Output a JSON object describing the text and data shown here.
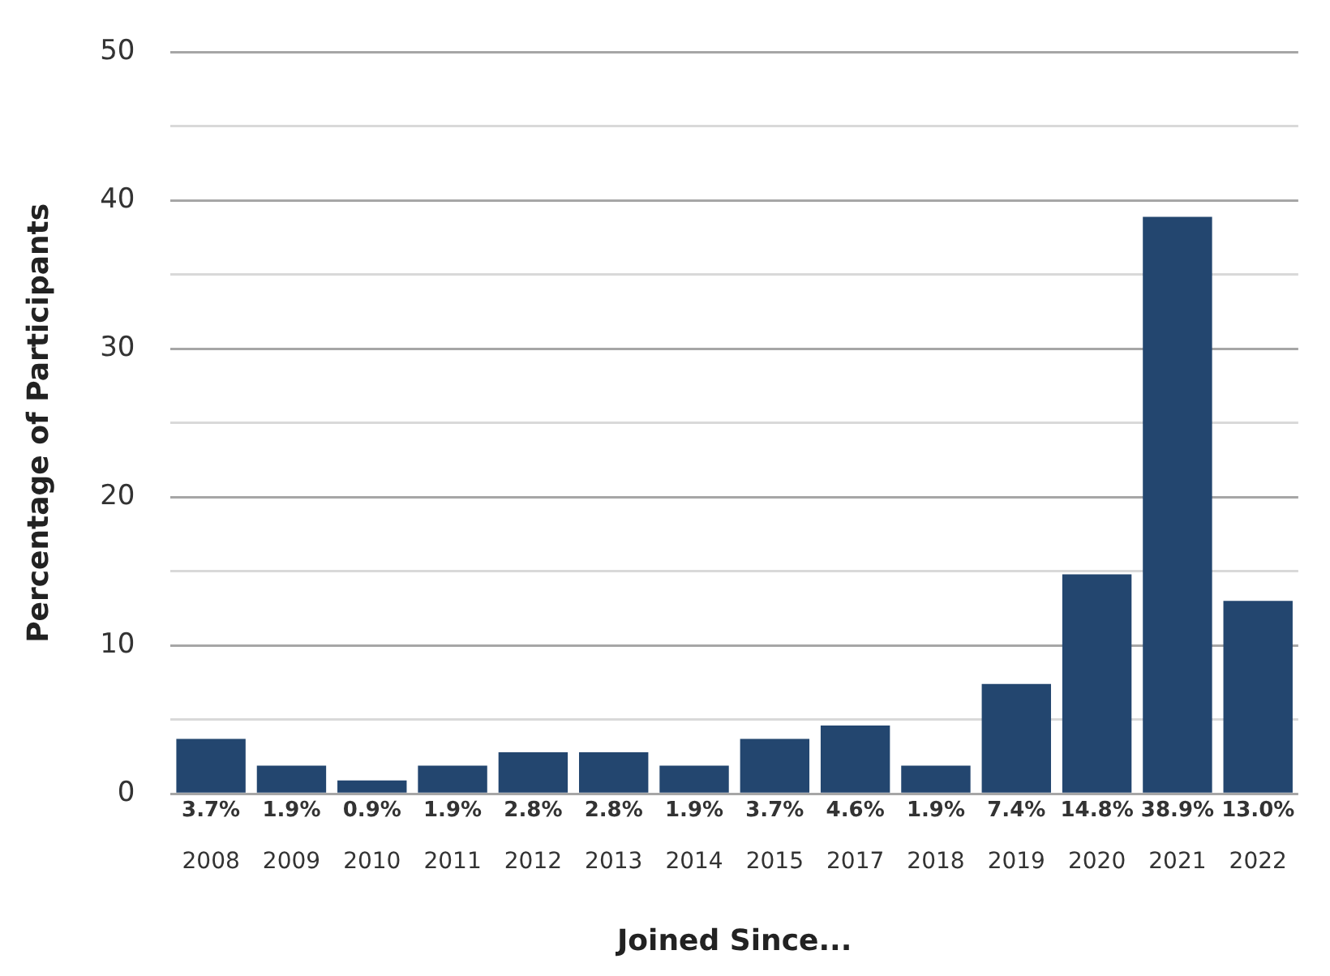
{
  "chart_data": {
    "type": "bar",
    "xlabel": "Joined Since...",
    "ylabel": "Percentage of Participants",
    "categories": [
      "2008",
      "2009",
      "2010",
      "2011",
      "2012",
      "2013",
      "2014",
      "2015",
      "2017",
      "2018",
      "2019",
      "2020",
      "2021",
      "2022"
    ],
    "values": [
      3.7,
      1.9,
      0.9,
      1.9,
      2.8,
      2.8,
      1.9,
      3.7,
      4.6,
      1.9,
      7.4,
      14.8,
      38.9,
      13.0
    ],
    "value_labels": [
      "3.7%",
      "1.9%",
      "0.9%",
      "1.9%",
      "2.8%",
      "2.8%",
      "1.9%",
      "3.7%",
      "4.6%",
      "1.9%",
      "7.4%",
      "14.8%",
      "38.9%",
      "13.0%"
    ],
    "color": "#23466f",
    "ylim": [
      0,
      50
    ],
    "yticks": [
      0,
      {
        "value": 5,
        "label": null
      },
      10,
      {
        "value": 15,
        "label": null
      },
      20,
      {
        "value": 25,
        "label": null
      },
      30,
      {
        "value": 35,
        "label": null
      },
      40,
      {
        "value": 45,
        "label": null
      },
      50
    ],
    "grid": "y",
    "legend": false
  }
}
